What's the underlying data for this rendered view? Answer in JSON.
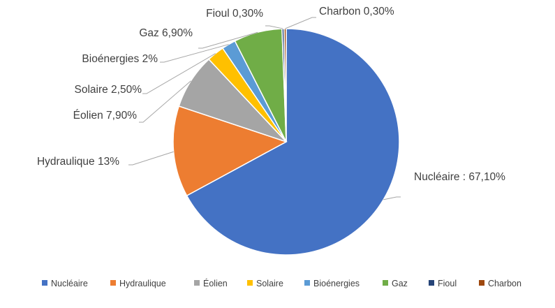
{
  "chart_data": {
    "type": "pie",
    "title": "",
    "legend_position": "bottom",
    "slices": [
      {
        "name": "Nucléaire",
        "value": 67.1,
        "label": "Nucléaire : 67,10%",
        "color": "#4472C4"
      },
      {
        "name": "Hydraulique",
        "value": 13.0,
        "label": "Hydraulique 13%",
        "color": "#ED7D31"
      },
      {
        "name": "Éolien",
        "value": 7.9,
        "label": "Éolien 7,90%",
        "color": "#A5A5A5"
      },
      {
        "name": "Solaire",
        "value": 2.5,
        "label": "Solaire 2,50%",
        "color": "#FFC000"
      },
      {
        "name": "Bioénergies",
        "value": 2.0,
        "label": "Bioénergies 2%",
        "color": "#5B9BD5"
      },
      {
        "name": "Gaz",
        "value": 6.9,
        "label": "Gaz 6,90%",
        "color": "#70AD47"
      },
      {
        "name": "Fioul",
        "value": 0.3,
        "label": "Fioul 0,30%",
        "color": "#264478"
      },
      {
        "name": "Charbon",
        "value": 0.3,
        "label": "Charbon 0,30%",
        "color": "#9E480E"
      }
    ]
  }
}
